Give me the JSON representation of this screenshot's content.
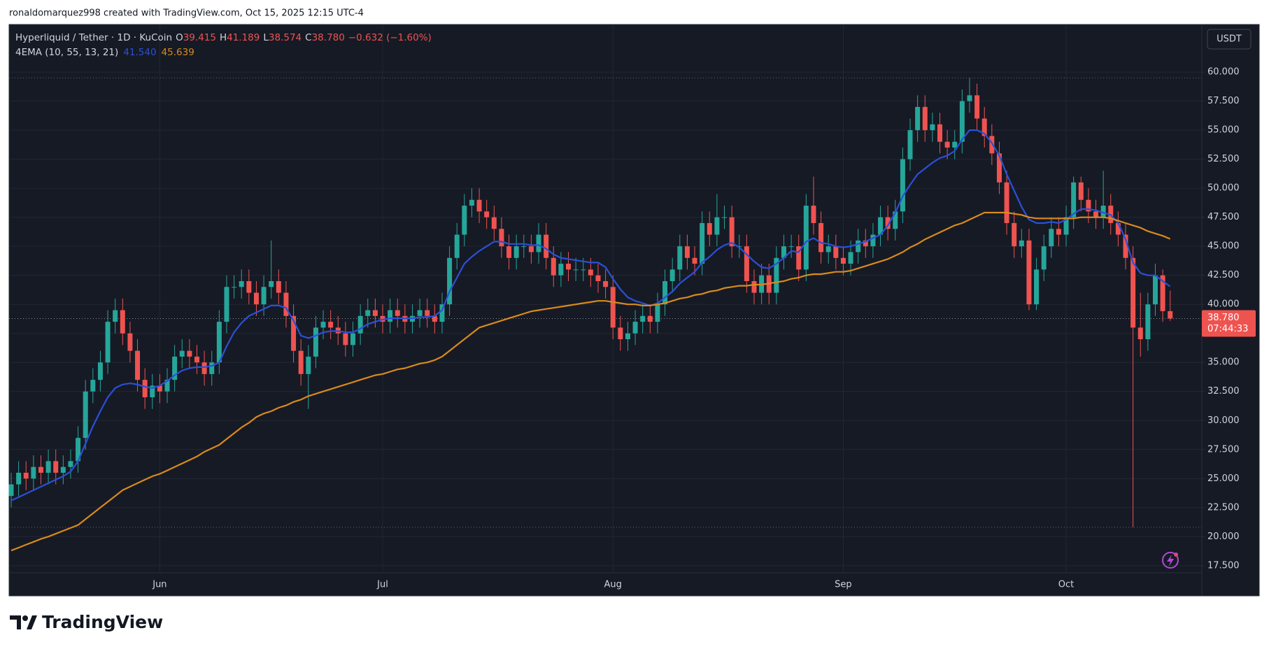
{
  "header": {
    "attribution": "ronaldomarquez998 created with TradingView.com, Oct 15, 2025 12:15 UTC-4"
  },
  "footer": {
    "logo_text": "TradingView"
  },
  "chart_data": {
    "type": "candlestick",
    "symbol": "Hyperliquid / Tether · 1D · KuCoin",
    "ohlc_legend": [
      {
        "key": "O",
        "value": "39.415"
      },
      {
        "key": "H",
        "value": "41.189"
      },
      {
        "key": "L",
        "value": "38.574"
      },
      {
        "key": "C",
        "value": "38.780"
      }
    ],
    "change": "−0.632 (−1.60%)",
    "currency": "USDT",
    "last_price_label": "38.780",
    "countdown": "07:44:33",
    "up_color": "#26a69a",
    "down_color": "#ef5350",
    "grid": true,
    "ylim": [
      14.9,
      64.1
    ],
    "yticks": [
      {
        "value": 17.5,
        "label": "17.500"
      },
      {
        "value": 20,
        "label": "20.000"
      },
      {
        "value": 22.5,
        "label": "22.500"
      },
      {
        "value": 25,
        "label": "25.000"
      },
      {
        "value": 27.5,
        "label": "27.500"
      },
      {
        "value": 30,
        "label": "30.000"
      },
      {
        "value": 32.5,
        "label": "32.500"
      },
      {
        "value": 35,
        "label": "35.000"
      },
      {
        "value": 37.5,
        "label": "37.500"
      },
      {
        "value": 40,
        "label": "40.000"
      },
      {
        "value": 42.5,
        "label": "42.500"
      },
      {
        "value": 45,
        "label": "45.000"
      },
      {
        "value": 47.5,
        "label": "47.500"
      },
      {
        "value": 50,
        "label": "50.000"
      },
      {
        "value": 52.5,
        "label": "52.500"
      },
      {
        "value": 55,
        "label": "55.000"
      },
      {
        "value": 57.5,
        "label": "57.500"
      },
      {
        "value": 60,
        "label": "60.000"
      }
    ],
    "categories": [
      null,
      null,
      null,
      null,
      null,
      null,
      null,
      null,
      null,
      null,
      null,
      null,
      null,
      null,
      null,
      null,
      null,
      null,
      null,
      null,
      "Jun",
      null,
      null,
      null,
      null,
      null,
      null,
      null,
      null,
      null,
      null,
      null,
      null,
      null,
      null,
      null,
      null,
      null,
      null,
      null,
      null,
      null,
      null,
      null,
      null,
      null,
      null,
      null,
      null,
      null,
      "Jul",
      null,
      null,
      null,
      null,
      null,
      null,
      null,
      null,
      null,
      null,
      null,
      null,
      null,
      null,
      null,
      null,
      null,
      null,
      null,
      null,
      null,
      null,
      null,
      null,
      null,
      null,
      null,
      null,
      null,
      null,
      "Aug",
      null,
      null,
      null,
      null,
      null,
      null,
      null,
      null,
      null,
      null,
      null,
      null,
      null,
      null,
      null,
      null,
      null,
      null,
      null,
      null,
      null,
      null,
      null,
      null,
      null,
      null,
      null,
      null,
      null,
      null,
      "Sep",
      null,
      null,
      null,
      null,
      null,
      null,
      null,
      null,
      null,
      null,
      null,
      null,
      null,
      null,
      null,
      null,
      null,
      null,
      null,
      null,
      null,
      null,
      null,
      null,
      null,
      null,
      null,
      null,
      null,
      "Oct",
      null,
      null,
      null,
      null,
      null,
      null,
      null,
      null,
      null,
      null,
      null,
      null,
      null,
      null
    ],
    "open": [
      23.5,
      24.5,
      25.5,
      25,
      26,
      25.5,
      26.5,
      25.5,
      26,
      26.5,
      28.5,
      32.5,
      33.5,
      35,
      38.5,
      39.5,
      37.5,
      36,
      33.5,
      32,
      33,
      32.5,
      33.5,
      35.5,
      36,
      35.5,
      35,
      34,
      35,
      38.5,
      41.5,
      41.5,
      42,
      41,
      40,
      41.5,
      42,
      41,
      39,
      36,
      34,
      35.5,
      38,
      38.5,
      38,
      37.5,
      36.5,
      37.5,
      39,
      39.5,
      39,
      38.5,
      39.5,
      39,
      38.5,
      39,
      39.5,
      39,
      38.5,
      40,
      44,
      46,
      48.5,
      49,
      48,
      47.5,
      46.5,
      45,
      44,
      45,
      45,
      44.5,
      46,
      44,
      42.5,
      43.5,
      43,
      43,
      43,
      42.5,
      42,
      41.5,
      38,
      37,
      37.5,
      38.5,
      39,
      38.5,
      40,
      42,
      43,
      45,
      44,
      43.5,
      47,
      46,
      47.5,
      47.5,
      45,
      45,
      42,
      41,
      42.5,
      41,
      44,
      45,
      45,
      43,
      48.5,
      47,
      44.5,
      45,
      44,
      43.5,
      44.5,
      45.5,
      45,
      46,
      47.5,
      46.5,
      48,
      52.5,
      55,
      57,
      55,
      55.5,
      54,
      53.5,
      54,
      57.5,
      58,
      56,
      54.5,
      53,
      50.5,
      47,
      45,
      45.5,
      40,
      43,
      45,
      46.5,
      46,
      47.5,
      50.5,
      49,
      48,
      47.5,
      48.5,
      47,
      46,
      44,
      38,
      37,
      40,
      42.5,
      39.415
    ],
    "high": [
      25.5,
      26.5,
      26.5,
      27,
      27,
      27.5,
      27.5,
      27,
      27.5,
      29.5,
      33.5,
      34.5,
      36,
      39.5,
      40.5,
      40.5,
      38.5,
      37,
      34.5,
      34,
      34,
      34.5,
      36.5,
      37,
      37,
      36.5,
      36,
      36,
      39.5,
      42.5,
      42.5,
      43,
      43,
      42,
      42.5,
      45.5,
      43,
      42,
      40,
      37,
      36.5,
      39,
      39.5,
      39.5,
      39,
      38.5,
      38.5,
      40,
      40.5,
      40.5,
      40,
      40.5,
      40.5,
      40,
      40,
      40.5,
      40.5,
      40,
      41,
      45,
      47,
      49.5,
      50,
      50,
      49,
      48.5,
      47.5,
      46,
      46,
      46,
      46,
      47,
      47,
      45,
      44.5,
      44.5,
      44,
      44,
      44,
      43.5,
      43,
      42.5,
      39,
      38.5,
      39.5,
      40,
      40,
      41,
      43,
      44,
      46,
      46,
      45,
      48,
      48,
      49.5,
      48.5,
      48.5,
      46,
      46,
      43,
      43.5,
      43.5,
      45,
      46,
      46,
      46,
      49.5,
      51,
      48,
      46,
      46,
      45,
      45.5,
      46.5,
      46.5,
      47,
      48.5,
      48.5,
      49,
      53.5,
      56,
      58,
      58,
      56.5,
      56.5,
      55,
      55,
      58.5,
      59.5,
      59,
      57,
      55.5,
      54,
      51.5,
      48,
      46.5,
      46.5,
      44,
      46,
      47.5,
      47.5,
      48.5,
      51,
      51,
      50,
      49,
      51.5,
      49.5,
      48,
      47,
      45,
      41,
      41,
      43.5,
      43,
      41.189
    ],
    "low": [
      22.5,
      23.5,
      24,
      24,
      24.5,
      24.5,
      24.5,
      24.5,
      25,
      25.5,
      27.5,
      31.5,
      32.5,
      34,
      37.5,
      36.5,
      35,
      32.5,
      31,
      31,
      31.5,
      31.5,
      32.5,
      34.5,
      34.5,
      34,
      33,
      33,
      34,
      37.5,
      40.5,
      40.5,
      40,
      39,
      39,
      40.5,
      40,
      38,
      35,
      33,
      31,
      34.5,
      37,
      37,
      36.5,
      35.5,
      35.5,
      36.5,
      38,
      38,
      37.5,
      37.5,
      38,
      37.5,
      37.5,
      38,
      38,
      37.5,
      37.5,
      39,
      43,
      45,
      47.5,
      47,
      46.5,
      45.5,
      44,
      43,
      43,
      44,
      43.5,
      43.5,
      43,
      41.5,
      41.5,
      42,
      42,
      42,
      41.5,
      41,
      40.5,
      37,
      36,
      36,
      36.5,
      37.5,
      37.5,
      37.5,
      39,
      41,
      42,
      43,
      42.5,
      42.5,
      45,
      45,
      46.5,
      44,
      44,
      41,
      40,
      40,
      40,
      40,
      43,
      44,
      42,
      42,
      46,
      43.5,
      43.5,
      43,
      42.5,
      42.5,
      43.5,
      44,
      44,
      45,
      45.5,
      45.5,
      47,
      51.5,
      54,
      54,
      54,
      53,
      52.5,
      52.5,
      53,
      56.5,
      55,
      53.5,
      52,
      49.5,
      46,
      44,
      44,
      39.5,
      39.5,
      42,
      44,
      45,
      45,
      46.5,
      48,
      47,
      46.5,
      46.5,
      46,
      45,
      43,
      20.8,
      35.5,
      36,
      39,
      38.5,
      38.574
    ],
    "close": [
      24.5,
      25.5,
      25,
      26,
      25.5,
      26.5,
      25.5,
      26,
      26.5,
      28.5,
      32.5,
      33.5,
      35,
      38.5,
      39.5,
      37.5,
      36,
      33.5,
      32,
      33,
      32.5,
      33.5,
      35.5,
      36,
      35.5,
      35,
      34,
      35,
      38.5,
      41.5,
      41.5,
      42,
      41,
      40,
      41.5,
      42,
      41,
      39,
      36,
      34,
      35.5,
      38,
      38.5,
      38,
      37.5,
      36.5,
      37.5,
      39,
      39.5,
      39,
      38.5,
      39.5,
      39,
      38.5,
      39,
      39.5,
      39,
      38.5,
      40,
      44,
      46,
      48.5,
      49,
      48,
      47.5,
      46.5,
      45,
      44,
      45,
      45,
      44.5,
      46,
      44,
      42.5,
      43.5,
      43,
      43,
      43,
      42.5,
      42,
      41.5,
      38,
      37,
      37.5,
      38.5,
      39,
      38.5,
      40,
      42,
      43,
      45,
      44,
      43.5,
      47,
      46,
      47.5,
      47.5,
      45,
      45,
      42,
      41,
      42.5,
      41,
      44,
      45,
      45,
      43,
      48.5,
      47,
      44.5,
      45,
      44,
      43.5,
      44.5,
      45.5,
      45,
      46,
      47.5,
      46.5,
      48,
      52.5,
      55,
      57,
      55,
      55.5,
      54,
      53.5,
      54,
      57.5,
      58,
      56,
      54.5,
      53,
      50.5,
      47,
      45,
      45.5,
      40,
      43,
      45,
      46.5,
      46,
      47.5,
      50.5,
      49,
      48,
      47.5,
      48.5,
      47,
      46,
      44,
      38,
      37,
      40,
      42.5,
      39.415,
      38.78
    ],
    "indicator": {
      "label": "4EMA (10, 55, 13, 21)",
      "series": [
        {
          "color": "#2b50d8",
          "last_label": "41.540",
          "values": [
            23.1,
            23.4,
            23.7,
            24,
            24.3,
            24.6,
            24.9,
            25.2,
            25.6,
            26.5,
            28,
            29.5,
            30.8,
            32,
            32.8,
            33.1,
            33.2,
            33.1,
            32.9,
            32.8,
            33,
            33.4,
            33.9,
            34.3,
            34.5,
            34.6,
            34.6,
            34.7,
            35,
            36.4,
            37.6,
            38.4,
            39,
            39.3,
            39.6,
            39.9,
            39.9,
            39.7,
            38.6,
            37.3,
            37.1,
            37.3,
            37.6,
            37.7,
            37.7,
            37.6,
            37.6,
            37.9,
            38.3,
            38.5,
            38.7,
            38.8,
            38.8,
            38.8,
            38.8,
            38.9,
            38.9,
            39,
            39.5,
            41.1,
            42.3,
            43.5,
            44.1,
            44.6,
            45,
            45.4,
            45.4,
            45.2,
            45.2,
            45.2,
            45.1,
            45.1,
            44.8,
            44.3,
            44,
            43.9,
            43.8,
            43.7,
            43.6,
            43.6,
            43.2,
            42.2,
            41.3,
            40.6,
            40.3,
            40.1,
            39.9,
            40.1,
            40.6,
            41.1,
            41.8,
            42.3,
            42.8,
            43.6,
            44.1,
            44.7,
            45.1,
            45.3,
            44.9,
            44.3,
            43.7,
            43.2,
            43.1,
            43.5,
            44,
            44.6,
            44.5,
            45.4,
            45.7,
            45.3,
            45.2,
            45,
            44.9,
            45,
            45.2,
            45.4,
            45.7,
            46,
            46.8,
            47.9,
            49.3,
            50.3,
            51.2,
            51.7,
            52.2,
            52.6,
            52.8,
            53.2,
            54.2,
            55,
            55,
            54.7,
            53.9,
            52.8,
            51.2,
            49.8,
            48.4,
            47.3,
            47,
            47,
            47.1,
            47,
            47.3,
            47.8,
            48.2,
            48.2,
            48.1,
            47.9,
            47.7,
            47,
            45.6,
            43.6,
            42.7,
            42.5,
            42.5,
            42,
            41.54
          ]
        },
        {
          "color": "#d98a1b",
          "last_label": "45.639",
          "values": [
            18.8,
            19.05,
            19.3,
            19.55,
            19.8,
            20,
            20.25,
            20.5,
            20.75,
            21,
            21.5,
            22,
            22.5,
            23,
            23.5,
            24,
            24.3,
            24.6,
            24.9,
            25.2,
            25.4,
            25.7,
            26,
            26.3,
            26.6,
            26.9,
            27.3,
            27.6,
            27.9,
            28.4,
            28.9,
            29.4,
            29.8,
            30.3,
            30.6,
            30.8,
            31.1,
            31.3,
            31.6,
            31.8,
            32.1,
            32.3,
            32.5,
            32.7,
            32.9,
            33.1,
            33.3,
            33.5,
            33.7,
            33.9,
            34,
            34.2,
            34.4,
            34.5,
            34.7,
            34.9,
            35,
            35.2,
            35.5,
            36,
            36.5,
            37,
            37.5,
            38,
            38.2,
            38.4,
            38.6,
            38.8,
            39,
            39.2,
            39.4,
            39.5,
            39.6,
            39.7,
            39.8,
            39.9,
            40,
            40.1,
            40.2,
            40.3,
            40.3,
            40.2,
            40.1,
            40,
            40,
            39.9,
            39.9,
            40,
            40.1,
            40.3,
            40.5,
            40.6,
            40.8,
            40.9,
            41.1,
            41.2,
            41.4,
            41.5,
            41.6,
            41.6,
            41.7,
            41.7,
            41.8,
            41.9,
            42,
            42.2,
            42.3,
            42.5,
            42.6,
            42.6,
            42.7,
            42.8,
            42.8,
            42.9,
            43.1,
            43.3,
            43.5,
            43.7,
            43.9,
            44.2,
            44.5,
            44.9,
            45.2,
            45.6,
            45.9,
            46.2,
            46.5,
            46.8,
            47,
            47.3,
            47.6,
            47.9,
            47.9,
            47.9,
            47.9,
            47.8,
            47.7,
            47.5,
            47.4,
            47.4,
            47.4,
            47.4,
            47.4,
            47.4,
            47.5,
            47.5,
            47.5,
            47.5,
            47.4,
            47.2,
            47,
            46.8,
            46.6,
            46.3,
            46.1,
            45.9,
            45.639
          ]
        }
      ]
    }
  }
}
